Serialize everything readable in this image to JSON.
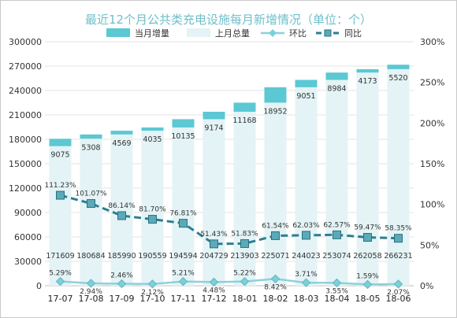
{
  "chart_data": {
    "type": "bar",
    "title": "最近12个月公共类充电设施每月新增情况（单位：个）",
    "categories": [
      "17-07",
      "17-08",
      "17-09",
      "17-10",
      "17-11",
      "17-12",
      "18-01",
      "18-02",
      "18-03",
      "18-04",
      "18-05",
      "18-06"
    ],
    "series": [
      {
        "name": "当月增量",
        "type": "stacked-bar",
        "values": [
          9075,
          5308,
          4569,
          4035,
          10135,
          9174,
          11168,
          18952,
          9051,
          8984,
          4173,
          5520
        ],
        "labels": [
          "9075",
          "5308",
          "4569",
          "4035",
          "10135",
          "9174",
          "11168",
          "18952",
          "9051",
          "8984",
          "4173",
          "5520"
        ]
      },
      {
        "name": "上月总量",
        "type": "bar",
        "values": [
          171609,
          180684,
          185990,
          190559,
          194594,
          204729,
          213903,
          225071,
          244023,
          253074,
          262058,
          266231
        ],
        "labels": [
          "171609",
          "180684",
          "185990",
          "190559",
          "194594",
          "204729",
          "213903",
          "225071",
          "244023",
          "253074",
          "262058",
          "266231"
        ]
      },
      {
        "name": "环比",
        "type": "line",
        "axis": "right",
        "values": [
          5.29,
          2.94,
          2.46,
          2.12,
          5.21,
          4.48,
          5.22,
          8.42,
          3.71,
          3.55,
          1.59,
          2.07
        ],
        "labels": [
          "5.29%",
          "2.94%",
          "2.46%",
          "2.12%",
          "5.21%",
          "4.48%",
          "5.22%",
          "8.42%",
          "3.71%",
          "3.55%",
          "1.59%",
          "2.07%"
        ]
      },
      {
        "name": "同比",
        "type": "line",
        "axis": "right",
        "values": [
          111.23,
          101.07,
          86.14,
          81.7,
          76.81,
          51.43,
          51.83,
          61.54,
          62.03,
          62.57,
          59.47,
          58.35
        ],
        "labels": [
          "111.23%",
          "101.07%",
          "86.14%",
          "81.70%",
          "76.81%",
          "51.43%",
          "51.83%",
          "61.54%",
          "62.03%",
          "62.57%",
          "59.47%",
          "58.35%"
        ]
      }
    ],
    "y_left": {
      "min": 0,
      "max": 300000,
      "ticks": [
        "0",
        "30000",
        "60000",
        "90000",
        "120000",
        "150000",
        "180000",
        "210000",
        "240000",
        "270000",
        "300000"
      ]
    },
    "y_right": {
      "min": 0,
      "max": 300,
      "ticks": [
        "0%",
        "50%",
        "100%",
        "150%",
        "200%",
        "250%",
        "300%"
      ]
    },
    "grid": true,
    "legend_position": "top",
    "colors": {
      "increment": "#5bc8d3",
      "prev_total": "#e4f3f5",
      "mom": "#8ed0da",
      "yoy": "#2b7f92",
      "title": "#6fbfca"
    }
  }
}
